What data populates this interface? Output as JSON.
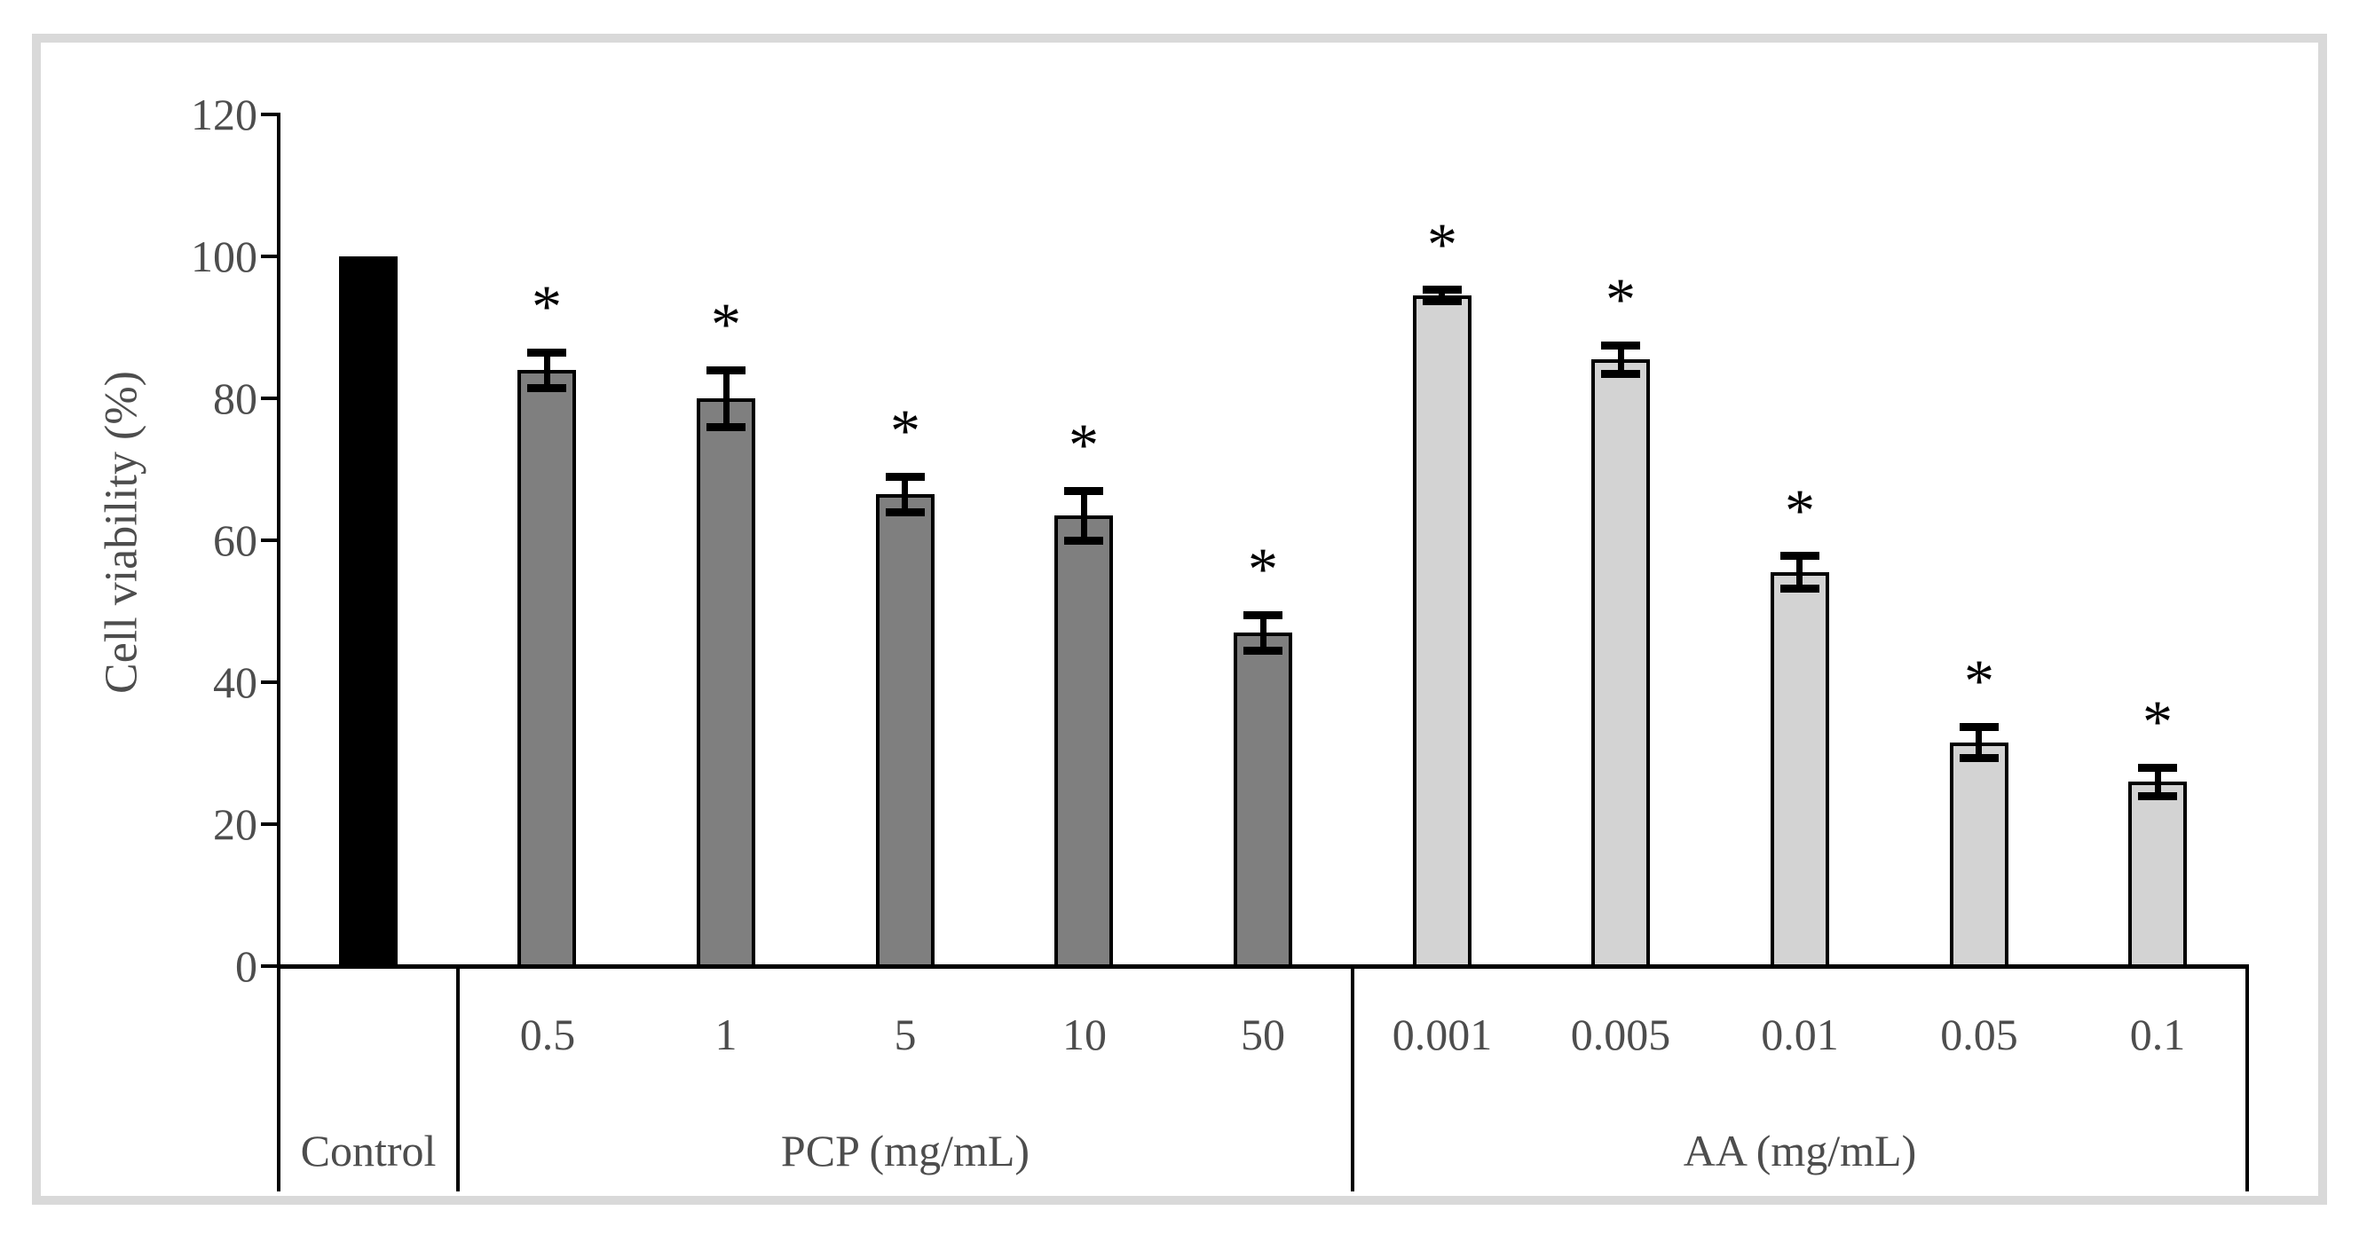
{
  "figure": {
    "background": "#ffffff",
    "frame_color": "#d9d9d9",
    "text_color": "#4d4d4d",
    "axis_color": "#000000"
  },
  "chart_data": {
    "type": "bar",
    "title": "",
    "xlabel": "",
    "ylabel": "Cell viability (%)",
    "ylim": [
      0,
      120
    ],
    "yticks": [
      0,
      20,
      40,
      60,
      80,
      100,
      120
    ],
    "grid": false,
    "legend": false,
    "significance_marker": "*",
    "error_bar_color": "#000000",
    "groups": [
      {
        "label": "Control",
        "bar_color": "#000000",
        "bars": [
          {
            "label": "",
            "value": 100,
            "error": null,
            "significant": false
          }
        ]
      },
      {
        "label": "PCP (mg/mL)",
        "bar_color": "#7f7f7f",
        "bars": [
          {
            "label": "0.5",
            "value": 84,
            "error": 2.5,
            "significant": true
          },
          {
            "label": "1",
            "value": 80,
            "error": 4,
            "significant": true
          },
          {
            "label": "5",
            "value": 66.5,
            "error": 2.5,
            "significant": true
          },
          {
            "label": "10",
            "value": 63.5,
            "error": 3.5,
            "significant": true
          },
          {
            "label": "50",
            "value": 47,
            "error": 2.5,
            "significant": true
          }
        ]
      },
      {
        "label": "AA (mg/mL)",
        "bar_color": "#d3d3d3",
        "bars": [
          {
            "label": "0.001",
            "value": 94.5,
            "error": 0.8,
            "significant": true
          },
          {
            "label": "0.005",
            "value": 85.5,
            "error": 2,
            "significant": true
          },
          {
            "label": "0.01",
            "value": 55.5,
            "error": 2.3,
            "significant": true
          },
          {
            "label": "0.05",
            "value": 31.5,
            "error": 2.2,
            "significant": true
          },
          {
            "label": "0.1",
            "value": 26,
            "error": 2,
            "significant": true
          }
        ]
      }
    ]
  }
}
